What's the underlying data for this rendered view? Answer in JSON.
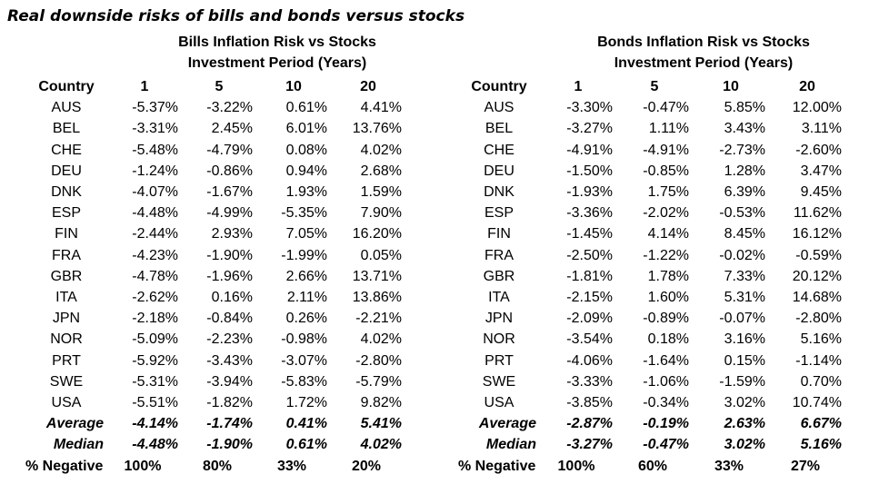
{
  "title": "Real downside risks of bills and bonds versus stocks",
  "panels": [
    {
      "title": "Bills Inflation Risk vs Stocks",
      "subtitle": "Investment Period (Years)",
      "headers": [
        "Country",
        "1",
        "5",
        "10",
        "20"
      ],
      "rows": [
        [
          "AUS",
          "-5.37%",
          "-3.22%",
          "0.61%",
          "4.41%"
        ],
        [
          "BEL",
          "-3.31%",
          "2.45%",
          "6.01%",
          "13.76%"
        ],
        [
          "CHE",
          "-5.48%",
          "-4.79%",
          "0.08%",
          "4.02%"
        ],
        [
          "DEU",
          "-1.24%",
          "-0.86%",
          "0.94%",
          "2.68%"
        ],
        [
          "DNK",
          "-4.07%",
          "-1.67%",
          "1.93%",
          "1.59%"
        ],
        [
          "ESP",
          "-4.48%",
          "-4.99%",
          "-5.35%",
          "7.90%"
        ],
        [
          "FIN",
          "-2.44%",
          "2.93%",
          "7.05%",
          "16.20%"
        ],
        [
          "FRA",
          "-4.23%",
          "-1.90%",
          "-1.99%",
          "0.05%"
        ],
        [
          "GBR",
          "-4.78%",
          "-1.96%",
          "2.66%",
          "13.71%"
        ],
        [
          "ITA",
          "-2.62%",
          "0.16%",
          "2.11%",
          "13.86%"
        ],
        [
          "JPN",
          "-2.18%",
          "-0.84%",
          "0.26%",
          "-2.21%"
        ],
        [
          "NOR",
          "-5.09%",
          "-2.23%",
          "-0.98%",
          "4.02%"
        ],
        [
          "PRT",
          "-5.92%",
          "-3.43%",
          "-3.07%",
          "-2.80%"
        ],
        [
          "SWE",
          "-5.31%",
          "-3.94%",
          "-5.83%",
          "-5.79%"
        ],
        [
          "USA",
          "-5.51%",
          "-1.82%",
          "1.72%",
          "9.82%"
        ]
      ],
      "average": [
        "Average",
        "-4.14%",
        "-1.74%",
        "0.41%",
        "5.41%"
      ],
      "median": [
        "Median",
        "-4.48%",
        "-1.90%",
        "0.61%",
        "4.02%"
      ],
      "negative": [
        "% Negative",
        "100%",
        "80%",
        "33%",
        "20%"
      ]
    },
    {
      "title": "Bonds Inflation Risk vs Stocks",
      "subtitle": "Investment Period (Years)",
      "headers": [
        "Country",
        "1",
        "5",
        "10",
        "20"
      ],
      "rows": [
        [
          "AUS",
          "-3.30%",
          "-0.47%",
          "5.85%",
          "12.00%"
        ],
        [
          "BEL",
          "-3.27%",
          "1.11%",
          "3.43%",
          "3.11%"
        ],
        [
          "CHE",
          "-4.91%",
          "-4.91%",
          "-2.73%",
          "-2.60%"
        ],
        [
          "DEU",
          "-1.50%",
          "-0.85%",
          "1.28%",
          "3.47%"
        ],
        [
          "DNK",
          "-1.93%",
          "1.75%",
          "6.39%",
          "9.45%"
        ],
        [
          "ESP",
          "-3.36%",
          "-2.02%",
          "-0.53%",
          "11.62%"
        ],
        [
          "FIN",
          "-1.45%",
          "4.14%",
          "8.45%",
          "16.12%"
        ],
        [
          "FRA",
          "-2.50%",
          "-1.22%",
          "-0.02%",
          "-0.59%"
        ],
        [
          "GBR",
          "-1.81%",
          "1.78%",
          "7.33%",
          "20.12%"
        ],
        [
          "ITA",
          "-2.15%",
          "1.60%",
          "5.31%",
          "14.68%"
        ],
        [
          "JPN",
          "-2.09%",
          "-0.89%",
          "-0.07%",
          "-2.80%"
        ],
        [
          "NOR",
          "-3.54%",
          "0.18%",
          "3.16%",
          "5.16%"
        ],
        [
          "PRT",
          "-4.06%",
          "-1.64%",
          "0.15%",
          "-1.14%"
        ],
        [
          "SWE",
          "-3.33%",
          "-1.06%",
          "-1.59%",
          "0.70%"
        ],
        [
          "USA",
          "-3.85%",
          "-0.34%",
          "3.02%",
          "10.74%"
        ]
      ],
      "average": [
        "Average",
        "-2.87%",
        "-0.19%",
        "2.63%",
        "6.67%"
      ],
      "median": [
        "Median",
        "-3.27%",
        "-0.47%",
        "3.02%",
        "5.16%"
      ],
      "negative": [
        "% Negative",
        "100%",
        "60%",
        "33%",
        "27%"
      ]
    }
  ]
}
